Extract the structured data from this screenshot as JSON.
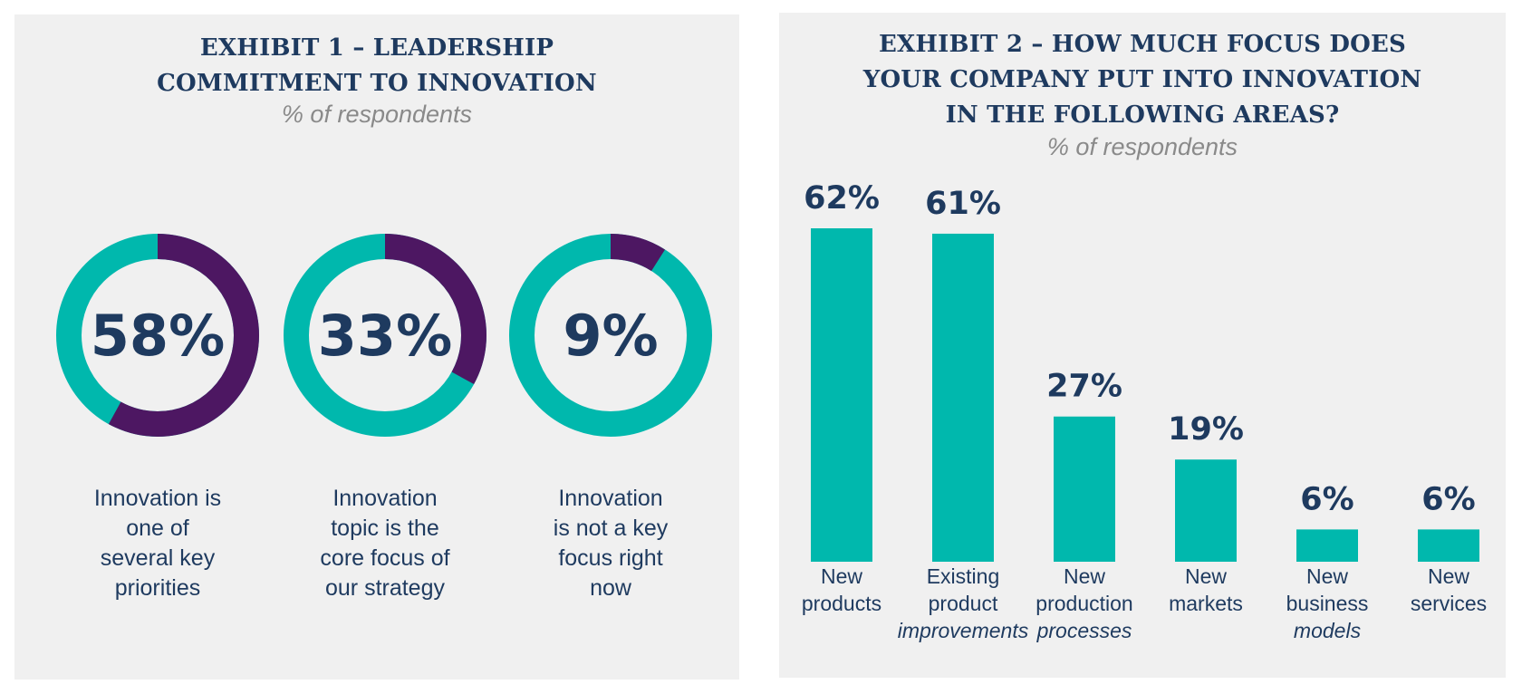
{
  "exhibit1": {
    "title_lines": [
      "EXHIBIT 1 – LEADERSHIP",
      "COMMITMENT TO INNOVATION"
    ],
    "subtitle": "% of respondents"
  },
  "exhibit2": {
    "title_lines": [
      "EXHIBIT 2 – HOW MUCH FOCUS DOES",
      "YOUR COMPANY PUT INTO INNOVATION",
      "IN THE FOLLOWING AREAS?"
    ],
    "subtitle": "% of respondents"
  },
  "colors": {
    "teal": "#00b8ad",
    "purple": "#4d1762",
    "navy": "#1e3a5f",
    "panel_bg": "#f0f0f0",
    "subtitle_gray": "#8a8a8a"
  },
  "chart_data": [
    {
      "type": "pie",
      "title": "EXHIBIT 1 – LEADERSHIP COMMITMENT TO INNOVATION",
      "subtitle": "% of respondents",
      "categories": [
        "Innovation is one of several key priorities",
        "Innovation topic is the core focus of our strategy",
        "Innovation is not a key focus right now"
      ],
      "values": [
        58,
        33,
        9
      ],
      "value_labels": [
        "58%",
        "33%",
        "9%"
      ],
      "label_lines": [
        [
          "Innovation is",
          "one of",
          "several key",
          "priorities"
        ],
        [
          "Innovation",
          "topic is the",
          "core focus of",
          "our strategy"
        ],
        [
          "Innovation",
          "is not a key",
          "focus right",
          "now"
        ]
      ]
    },
    {
      "type": "bar",
      "title": "EXHIBIT 2 – HOW MUCH FOCUS DOES YOUR COMPANY PUT INTO INNOVATION IN THE FOLLOWING AREAS?",
      "subtitle": "% of respondents",
      "categories": [
        "New products",
        "Existing product improvements",
        "New production processes",
        "New markets",
        "New business models",
        "New services"
      ],
      "values": [
        62,
        61,
        27,
        19,
        6,
        6
      ],
      "value_labels": [
        "62%",
        "61%",
        "27%",
        "19%",
        "6%",
        "6%"
      ],
      "label_lines": [
        [
          "New",
          "products",
          ""
        ],
        [
          "Existing",
          "product",
          "improvements"
        ],
        [
          "New",
          "production",
          "processes"
        ],
        [
          "New",
          "markets",
          ""
        ],
        [
          "New",
          "business",
          "models"
        ],
        [
          "New",
          "services",
          ""
        ]
      ],
      "ylim": [
        0,
        62
      ]
    }
  ]
}
